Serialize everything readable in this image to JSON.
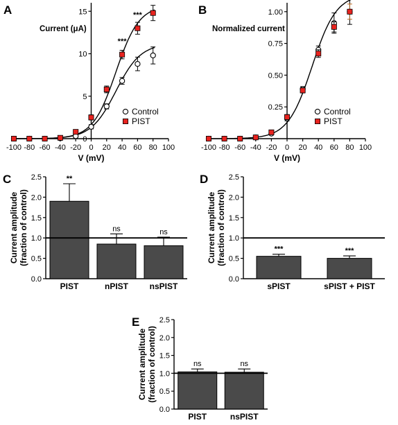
{
  "chart_data": [
    {
      "id": "A",
      "type": "line",
      "panel_label": "A",
      "title": "Current (μA)",
      "xlabel": "V (mV)",
      "ylabel": "",
      "xlim": [
        -100,
        100
      ],
      "ylim": [
        0,
        16
      ],
      "xticks": [
        -100,
        -80,
        -60,
        -40,
        -20,
        0,
        20,
        40,
        60,
        80,
        100
      ],
      "yticks": [
        0,
        5,
        10,
        15
      ],
      "legend_position": "bottom-right",
      "series": [
        {
          "name": "Control",
          "marker": "open-circle",
          "color": "#000000",
          "x": [
            -100,
            -80,
            -60,
            -40,
            -20,
            0,
            20,
            40,
            60,
            80
          ],
          "y": [
            0,
            0,
            0,
            0.05,
            0.3,
            1.4,
            3.8,
            6.8,
            8.8,
            9.8
          ],
          "err": [
            0,
            0,
            0,
            0.05,
            0.15,
            0.25,
            0.3,
            0.4,
            0.8,
            1.0
          ],
          "fit": {
            "max": 11.2,
            "v_half": 32,
            "k": 16
          }
        },
        {
          "name": "PIST",
          "marker": "filled-square",
          "color": "#e8231f",
          "x": [
            -100,
            -80,
            -60,
            -40,
            -20,
            0,
            20,
            40,
            60,
            80
          ],
          "y": [
            0,
            0,
            0,
            0.1,
            0.8,
            2.5,
            5.8,
            9.9,
            13.0,
            14.8
          ],
          "err": [
            0,
            0,
            0,
            0.05,
            0.2,
            0.3,
            0.4,
            0.5,
            0.7,
            0.9
          ],
          "fit": {
            "max": 15.7,
            "v_half": 32,
            "k": 15
          }
        }
      ],
      "annotations": [
        {
          "x": 40,
          "y": 11.2,
          "text": "***"
        },
        {
          "x": 60,
          "y": 14.3,
          "text": "***"
        },
        {
          "x": 80,
          "y": 16.2,
          "text": "***"
        }
      ]
    },
    {
      "id": "B",
      "type": "line",
      "panel_label": "B",
      "title": "Normalized current",
      "xlabel": "V (mV)",
      "ylabel": "",
      "xlim": [
        -100,
        100
      ],
      "ylim": [
        0,
        1.07
      ],
      "xticks": [
        -100,
        -80,
        -60,
        -40,
        -20,
        0,
        20,
        40,
        60,
        80,
        100
      ],
      "yticks": [
        "0.25",
        "0.50",
        "0.75",
        "1.00"
      ],
      "legend_position": "bottom-right",
      "series": [
        {
          "name": "Control",
          "marker": "open-circle",
          "color": "#000000",
          "x": [
            -100,
            -80,
            -60,
            -40,
            -20,
            0,
            20,
            40,
            60,
            80
          ],
          "y": [
            0,
            0,
            0,
            0.01,
            0.04,
            0.16,
            0.39,
            0.7,
            0.91,
            1.0
          ],
          "err": [
            0,
            0,
            0,
            0,
            0.01,
            0.02,
            0.02,
            0.03,
            0.08,
            0.1
          ],
          "fit": {
            "max": 1.14,
            "v_half": 32,
            "k": 15.5
          }
        },
        {
          "name": "PIST",
          "marker": "filled-square",
          "color": "#e8231f",
          "x": [
            -100,
            -80,
            -60,
            -40,
            -20,
            0,
            20,
            40,
            60,
            80
          ],
          "y": [
            0,
            0,
            0,
            0.01,
            0.05,
            0.17,
            0.38,
            0.67,
            0.88,
            1.0
          ],
          "err": [
            0,
            0,
            0,
            0,
            0.01,
            0.02,
            0.02,
            0.03,
            0.04,
            0.06
          ],
          "fit": null
        }
      ]
    },
    {
      "id": "C",
      "type": "bar",
      "panel_label": "C",
      "ylabel": "Current amplitude (fraction of control)",
      "ylabel_lines": [
        "Current amplitude",
        "(fraction of control)"
      ],
      "ylim": [
        0,
        2.5
      ],
      "yticks": [
        "0.0",
        "0.5",
        "1.0",
        "1.5",
        "2.0",
        "2.5"
      ],
      "reference_line": 1.0,
      "categories": [
        "PIST",
        "nPIST",
        "nsPIST"
      ],
      "values": [
        1.9,
        0.85,
        0.81
      ],
      "errors": [
        0.43,
        0.25,
        0.21
      ],
      "significance": [
        "**",
        "ns",
        "ns"
      ],
      "bar_color": "#4a4a4a"
    },
    {
      "id": "D",
      "type": "bar",
      "panel_label": "D",
      "ylabel": "Current amplitude (fraction of control)",
      "ylabel_lines": [
        "Current amplitude",
        "(fraction of control)"
      ],
      "ylim": [
        0,
        2.5
      ],
      "yticks": [
        "0.0",
        "0.5",
        "1.0",
        "1.5",
        "2.0",
        "2.5"
      ],
      "reference_line": 1.0,
      "categories": [
        "sPIST",
        "sPIST + PIST"
      ],
      "values": [
        0.55,
        0.5
      ],
      "errors": [
        0.05,
        0.06
      ],
      "significance": [
        "***",
        "***"
      ],
      "bar_color": "#4a4a4a"
    },
    {
      "id": "E",
      "type": "bar",
      "panel_label": "E",
      "ylabel": "Current amplitude (fraction of control)",
      "ylabel_lines": [
        "Current amplitude",
        "(fraction of control)"
      ],
      "ylim": [
        0,
        2.5
      ],
      "yticks": [
        "0.0",
        "0.5",
        "1.0",
        "1.5",
        "2.0",
        "2.5"
      ],
      "reference_line": 1.0,
      "categories": [
        "PIST",
        "nsPIST"
      ],
      "values": [
        1.04,
        1.03
      ],
      "errors": [
        0.08,
        0.09
      ],
      "significance": [
        "ns",
        "ns"
      ],
      "bar_color": "#4a4a4a"
    }
  ]
}
